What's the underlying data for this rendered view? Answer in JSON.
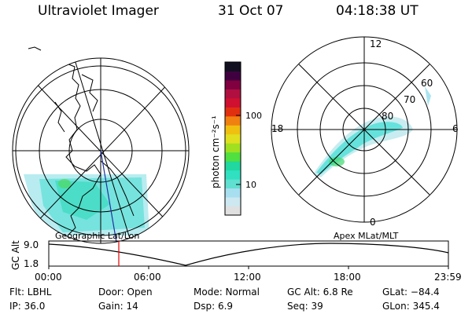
{
  "header": {
    "title": "Ultraviolet Imager",
    "date": "31 Oct 07",
    "time": "04:18:38 UT"
  },
  "colorbar": {
    "unit_label": "photon cm⁻²s⁻¹",
    "tick_100": "100",
    "tick_10": "10",
    "colors": [
      "#e0e0e0",
      "#cde8f0",
      "#a8dff0",
      "#60e0d0",
      "#30e0c0",
      "#20d8a0",
      "#50e040",
      "#a0e020",
      "#e0e020",
      "#f0c010",
      "#f08010",
      "#e03010",
      "#d01030",
      "#b01040",
      "#800040",
      "#400040",
      "#101020"
    ]
  },
  "geographic": {
    "label": "Geographic Lat/Lon"
  },
  "apex": {
    "label": "Apex  MLat/MLT",
    "mlt_12": "12",
    "mlt_18": "18",
    "mlt_6": "6",
    "mlt_0": "0",
    "lat_60": "60",
    "lat_70": "70",
    "lat_80": "80"
  },
  "timeline": {
    "y_axis_label": "GC Alt",
    "y_max": "9.0",
    "y_min": "1.8",
    "ticks": [
      "00:00",
      "06:00",
      "12:00",
      "18:00",
      "23:59"
    ],
    "current_time_marker_color": "#e00000"
  },
  "info": {
    "filter": "Flt: LBHL",
    "ip": "IP: 36.0",
    "door": "Door: Open",
    "gain": "Gain: 14",
    "mode": "Mode: Normal",
    "dsp": "Dsp:      6.9",
    "gc_alt": "GC Alt: 6.8 Re",
    "seq": "Seq: 39",
    "glat": "GLat: −84.4",
    "glon": "GLon: 345.4"
  }
}
